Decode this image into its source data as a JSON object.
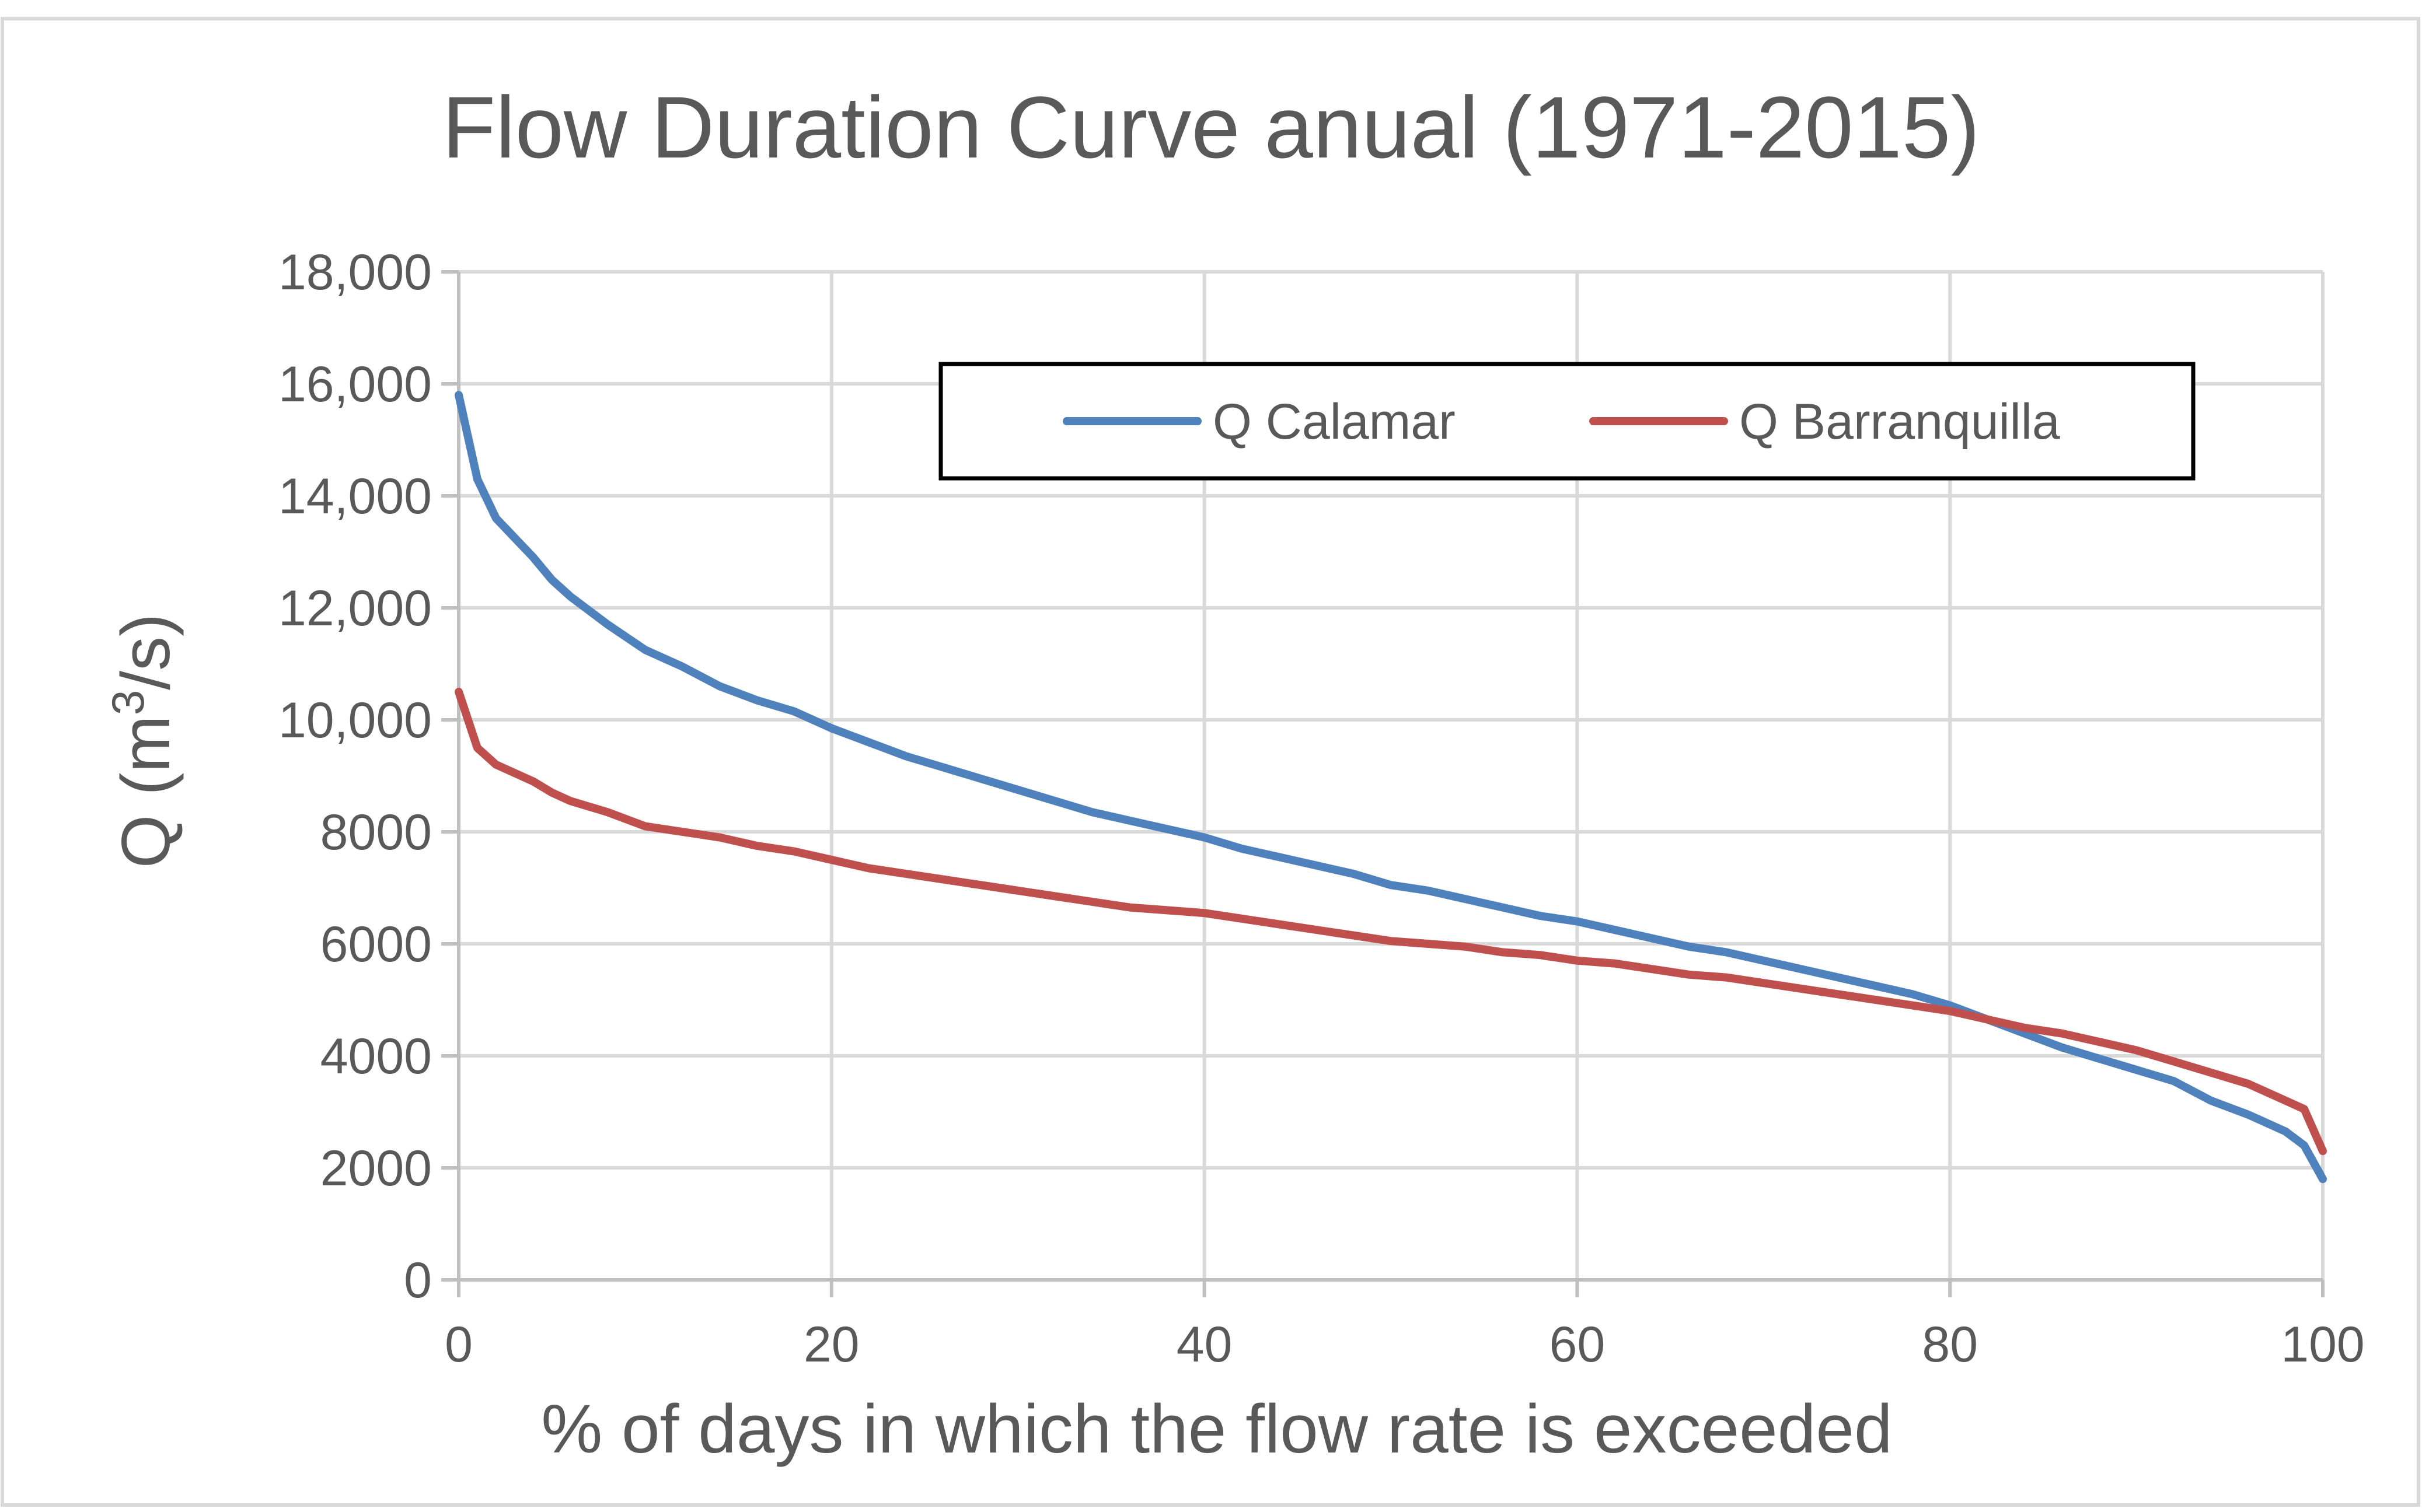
{
  "chart_data": {
    "type": "line",
    "title": "Flow Duration Curve anual (1971-2015)",
    "xlabel": "% of days in which the flow rate is exceeded",
    "ylabel_main": "Q (m",
    "ylabel_sup": "3",
    "ylabel_end": "/s)",
    "xlim": [
      0,
      100
    ],
    "ylim": [
      0,
      18000
    ],
    "x_ticks": [
      0,
      20,
      40,
      60,
      80,
      100
    ],
    "x_tick_labels": [
      "0",
      "20",
      "40",
      "60",
      "80",
      "100"
    ],
    "y_ticks": [
      0,
      2000,
      4000,
      6000,
      8000,
      10000,
      12000,
      14000,
      16000,
      18000
    ],
    "y_tick_labels": [
      "0",
      "2000",
      "4000",
      "6000",
      "8000",
      "10,000",
      "12,000",
      "14,000",
      "16,000",
      "18,000"
    ],
    "grid": true,
    "legend_position": "top-right",
    "series": [
      {
        "name": "Q Calamar",
        "color": "#4f81bd",
        "x": [
          0,
          1,
          2,
          4,
          5,
          6,
          8,
          10,
          12,
          14,
          16,
          18,
          20,
          22,
          24,
          26,
          28,
          30,
          32,
          34,
          36,
          38,
          40,
          42,
          44,
          46,
          48,
          50,
          52,
          54,
          56,
          58,
          60,
          62,
          64,
          66,
          68,
          70,
          72,
          74,
          76,
          78,
          80,
          82,
          84,
          86,
          88,
          90,
          92,
          94,
          96,
          98,
          99,
          100
        ],
        "values": [
          15800,
          14300,
          13600,
          12900,
          12500,
          12200,
          11700,
          11250,
          10950,
          10600,
          10350,
          10150,
          9850,
          9600,
          9350,
          9150,
          8950,
          8750,
          8550,
          8350,
          8200,
          8050,
          7900,
          7700,
          7550,
          7400,
          7250,
          7050,
          6950,
          6800,
          6650,
          6500,
          6400,
          6250,
          6100,
          5950,
          5850,
          5700,
          5550,
          5400,
          5250,
          5100,
          4900,
          4650,
          4400,
          4150,
          3950,
          3750,
          3550,
          3200,
          2950,
          2650,
          2400,
          1800
        ]
      },
      {
        "name": "Q Barranquilla",
        "color": "#c0504d",
        "x": [
          0,
          1,
          2,
          4,
          5,
          6,
          8,
          10,
          12,
          14,
          16,
          18,
          20,
          22,
          24,
          26,
          28,
          30,
          32,
          34,
          36,
          38,
          40,
          42,
          44,
          46,
          48,
          50,
          52,
          54,
          56,
          58,
          60,
          62,
          64,
          66,
          68,
          70,
          72,
          74,
          76,
          78,
          80,
          82,
          84,
          86,
          88,
          90,
          92,
          94,
          96,
          98,
          99,
          100
        ],
        "values": [
          10500,
          9500,
          9200,
          8900,
          8700,
          8550,
          8350,
          8100,
          8000,
          7900,
          7750,
          7650,
          7500,
          7350,
          7250,
          7150,
          7050,
          6950,
          6850,
          6750,
          6650,
          6600,
          6550,
          6450,
          6350,
          6250,
          6150,
          6050,
          6000,
          5950,
          5850,
          5800,
          5700,
          5650,
          5550,
          5450,
          5400,
          5300,
          5200,
          5100,
          5000,
          4900,
          4800,
          4650,
          4500,
          4400,
          4250,
          4100,
          3900,
          3700,
          3500,
          3200,
          3050,
          2300
        ]
      }
    ]
  }
}
